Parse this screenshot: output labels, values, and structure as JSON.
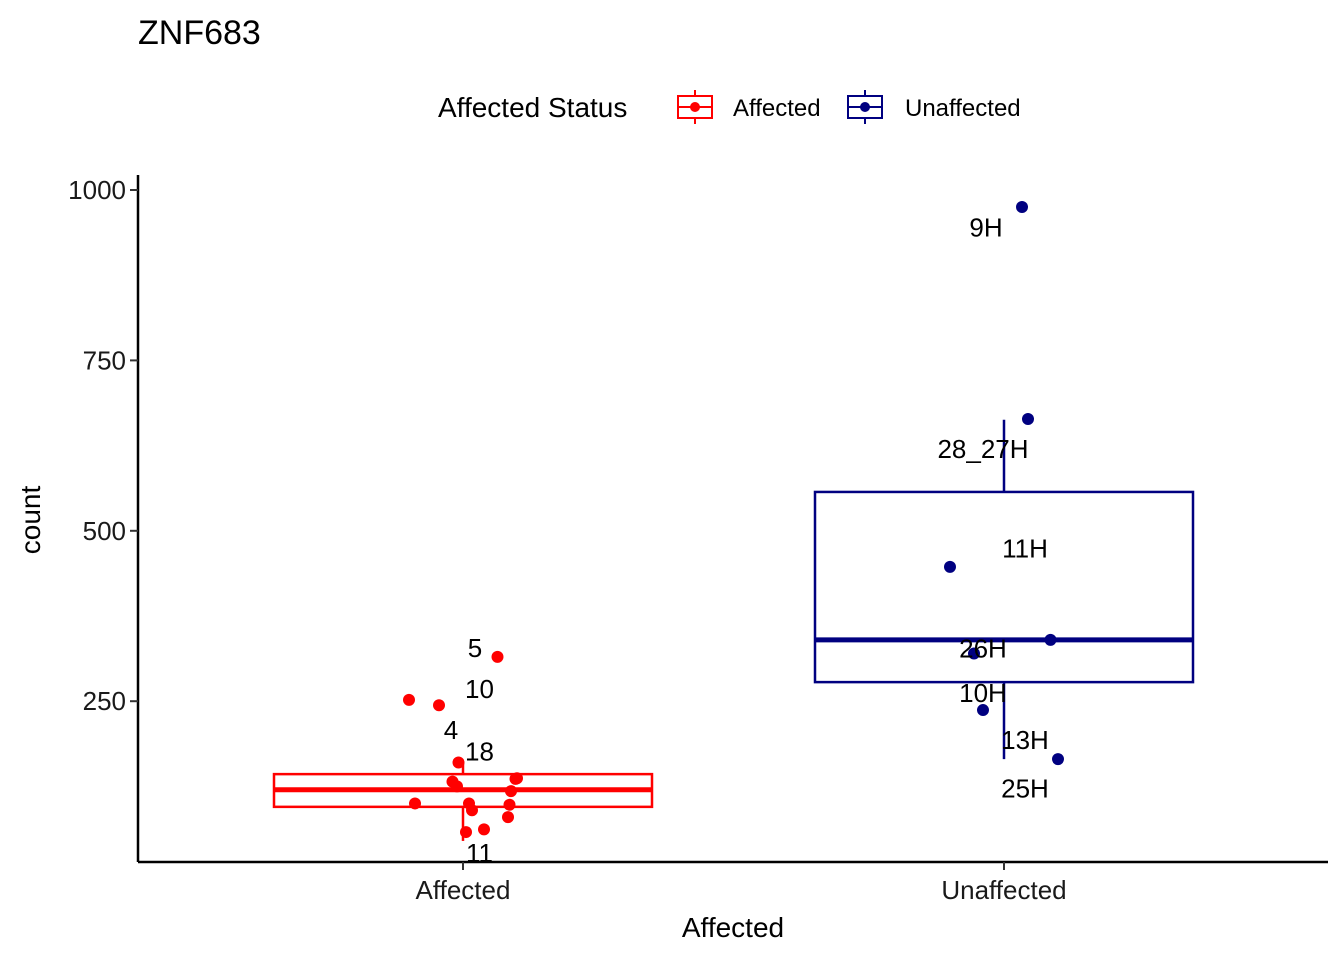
{
  "chart_data": {
    "type": "boxplot",
    "title": "ZNF683",
    "xlabel": "Affected",
    "ylabel": "count",
    "ylim": [
      0,
      1000
    ],
    "yticks": [
      250,
      500,
      750,
      1000
    ],
    "categories": [
      "Affected",
      "Unaffected"
    ],
    "grid": false,
    "legend": {
      "title": "Affected Status",
      "position": "top",
      "entries": [
        {
          "label": "Affected",
          "color": "#ff0000"
        },
        {
          "label": "Unaffected",
          "color": "#000080"
        }
      ]
    },
    "series": [
      {
        "name": "Affected",
        "color": "#ff0000",
        "box": {
          "min": 45,
          "q1": 95,
          "median": 120,
          "q3": 143,
          "max": 160
        },
        "points": [
          {
            "value": 252,
            "jitter": -0.18
          },
          {
            "value": 244,
            "jitter": -0.08
          },
          {
            "value": 315,
            "jitter": 0.115
          },
          {
            "value": 160,
            "jitter": -0.015
          },
          {
            "value": 132,
            "jitter": -0.035
          },
          {
            "value": 125,
            "jitter": -0.02
          },
          {
            "value": 137,
            "jitter": 0.18
          },
          {
            "value": 136,
            "jitter": 0.175
          },
          {
            "value": 118,
            "jitter": 0.16
          },
          {
            "value": 100,
            "jitter": -0.16
          },
          {
            "value": 100,
            "jitter": 0.02
          },
          {
            "value": 98,
            "jitter": 0.155
          },
          {
            "value": 90,
            "jitter": 0.03
          },
          {
            "value": 80,
            "jitter": 0.15
          },
          {
            "value": 62,
            "jitter": 0.07
          },
          {
            "value": 58,
            "jitter": 0.01
          }
        ],
        "annotations": [
          {
            "label": "5",
            "value": 328,
            "jitter": 0.04
          },
          {
            "label": "10",
            "value": 268,
            "jitter": 0.055
          },
          {
            "label": "4",
            "value": 208,
            "jitter": -0.04
          },
          {
            "label": "18",
            "value": 176,
            "jitter": 0.055
          },
          {
            "label": "11",
            "value": 27,
            "jitter": 0.055
          }
        ]
      },
      {
        "name": "Unaffected",
        "color": "#000080",
        "box": {
          "min": 165,
          "q1": 278,
          "median": 340,
          "q3": 557,
          "max": 663
        },
        "points": [
          {
            "value": 975,
            "jitter": 0.06
          },
          {
            "value": 664,
            "jitter": 0.08
          },
          {
            "value": 447,
            "jitter": -0.18
          },
          {
            "value": 340,
            "jitter": 0.155
          },
          {
            "value": 320,
            "jitter": -0.1
          },
          {
            "value": 237,
            "jitter": -0.07
          },
          {
            "value": 165,
            "jitter": 0.18
          }
        ],
        "annotations": [
          {
            "label": "9H",
            "value": 945,
            "jitter": -0.06
          },
          {
            "label": "28_27H",
            "value": 620,
            "jitter": -0.07
          },
          {
            "label": "11H",
            "value": 474,
            "jitter": 0.07
          },
          {
            "label": "26H",
            "value": 327,
            "jitter": -0.07
          },
          {
            "label": "10H",
            "value": 262,
            "jitter": -0.07
          },
          {
            "label": "13H",
            "value": 193,
            "jitter": 0.07
          },
          {
            "label": "25H",
            "value": 122,
            "jitter": 0.07
          }
        ]
      }
    ]
  }
}
